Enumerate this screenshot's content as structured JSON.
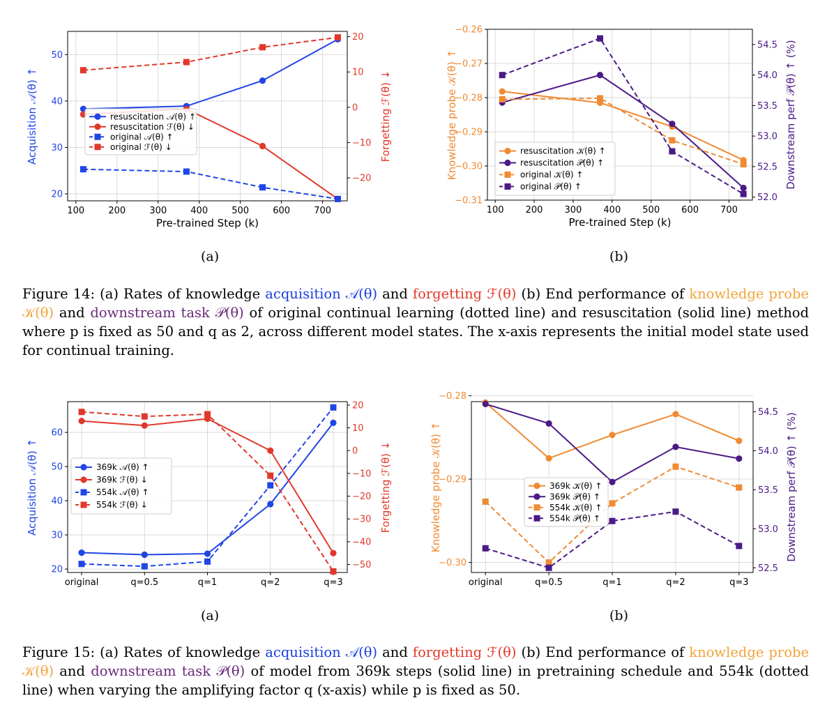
{
  "colors": {
    "blue": "#1f45e6",
    "red": "#e0392b",
    "orange": "#f08a33",
    "purple": "#4b1a86",
    "grid": "#d9d9d9"
  },
  "chart_data": [
    {
      "id": "fig14a",
      "type": "line",
      "xlabel": "Pre-trained Step (k)",
      "ylabel": "Acquisition 𝒜(θ) ↑",
      "y2label": "Forgetting ℱ(θ) ↓",
      "x": [
        118,
        369,
        554,
        737
      ],
      "xlim": [
        80,
        760
      ],
      "ylim": [
        18.5,
        55
      ],
      "y2lim": [
        -26.5,
        21.5
      ],
      "xticks": [
        100,
        200,
        300,
        400,
        500,
        600,
        700
      ],
      "yticks": [
        20,
        30,
        40,
        50
      ],
      "y2ticks": [
        -20,
        -10,
        0,
        10,
        20
      ],
      "xtick_labels": [
        "100",
        "200",
        "300",
        "400",
        "500",
        "600",
        "700"
      ],
      "ytick_labels": [
        "20",
        "30",
        "40",
        "50"
      ],
      "y2tick_labels": [
        "−20",
        "−10",
        "0",
        "10",
        "20"
      ],
      "legend": "center-left",
      "series": [
        {
          "name": "resuscitation 𝒜(θ) ↑",
          "axis": "left",
          "color": "blue",
          "marker": "circle",
          "dash": false,
          "values": [
            38.3,
            38.9,
            44.4,
            53.3
          ]
        },
        {
          "name": "resuscitation ℱ(θ) ↓",
          "axis": "right",
          "color": "red",
          "marker": "circle",
          "dash": false,
          "values": [
            -2,
            -0.5,
            -11,
            -26
          ]
        },
        {
          "name": "original 𝒜(θ) ↑",
          "axis": "left",
          "color": "blue",
          "marker": "square",
          "dash": true,
          "values": [
            25.3,
            24.8,
            21.4,
            18.9
          ]
        },
        {
          "name": "original ℱ(θ) ↓",
          "axis": "right",
          "color": "red",
          "marker": "square",
          "dash": true,
          "values": [
            10.5,
            12.8,
            17,
            19.8
          ]
        }
      ]
    },
    {
      "id": "fig14b",
      "type": "line",
      "xlabel": "Pre-trained Step (k)",
      "ylabel": "Knowledge probe 𝒦(θ) ↑",
      "y2label": "Downstream perf 𝒫(θ) ↑ (%)",
      "x": [
        118,
        369,
        554,
        737
      ],
      "xlim": [
        80,
        760
      ],
      "ylim": [
        -0.31,
        -0.26
      ],
      "y2lim": [
        51.95,
        54.75
      ],
      "xticks": [
        100,
        200,
        300,
        400,
        500,
        600,
        700
      ],
      "yticks": [
        -0.31,
        -0.3,
        -0.29,
        -0.28,
        -0.27,
        -0.26
      ],
      "y2ticks": [
        52.0,
        52.5,
        53.0,
        53.5,
        54.0,
        54.5
      ],
      "xtick_labels": [
        "100",
        "200",
        "300",
        "400",
        "500",
        "600",
        "700"
      ],
      "ytick_labels": [
        "−0.31",
        "−0.30",
        "−0.29",
        "−0.28",
        "−0.27",
        "−0.26"
      ],
      "y2tick_labels": [
        "52.0",
        "52.5",
        "53.0",
        "53.5",
        "54.0",
        "54.5"
      ],
      "legend": "lower-left",
      "series": [
        {
          "name": "resuscitation 𝒦(θ) ↑",
          "axis": "left",
          "color": "orange",
          "marker": "circle",
          "dash": false,
          "values": [
            -0.2782,
            -0.2815,
            -0.2885,
            -0.2983
          ]
        },
        {
          "name": "resuscitation 𝒫(θ) ↑",
          "axis": "right",
          "color": "purple",
          "marker": "circle",
          "dash": false,
          "values": [
            53.55,
            54.0,
            53.2,
            52.15
          ]
        },
        {
          "name": "original 𝒦(θ) ↑",
          "axis": "left",
          "color": "orange",
          "marker": "square",
          "dash": true,
          "values": [
            -0.2805,
            -0.2802,
            -0.2925,
            -0.2995
          ]
        },
        {
          "name": "original 𝒫(θ) ↑",
          "axis": "right",
          "color": "purple",
          "marker": "square",
          "dash": true,
          "values": [
            54.0,
            54.6,
            52.75,
            52.05
          ]
        }
      ]
    },
    {
      "id": "fig15a",
      "type": "line",
      "ylabel": "Acquisition 𝒜(θ) ↑",
      "y2label": "Forgetting ℱ(θ) ↓",
      "categories": [
        "original",
        "q=0.5",
        "q=1",
        "q=2",
        "q=3"
      ],
      "ylim": [
        19,
        69
      ],
      "y2lim": [
        -53.5,
        21.5
      ],
      "yticks": [
        20,
        30,
        40,
        50,
        60
      ],
      "y2ticks": [
        -50,
        -40,
        -30,
        -20,
        -10,
        0,
        10,
        20
      ],
      "ytick_labels": [
        "20",
        "30",
        "40",
        "50",
        "60"
      ],
      "y2tick_labels": [
        "−50",
        "−40",
        "−30",
        "−20",
        "−10",
        "0",
        "10",
        "20"
      ],
      "legend": "center-left",
      "series": [
        {
          "name": "369k 𝒜(θ) ↑",
          "axis": "left",
          "color": "blue",
          "marker": "circle",
          "dash": false,
          "values": [
            24.8,
            24.2,
            24.5,
            39.0,
            62.8
          ]
        },
        {
          "name": "369k ℱ(θ) ↓",
          "axis": "right",
          "color": "red",
          "marker": "circle",
          "dash": false,
          "values": [
            13,
            11,
            14,
            0,
            -45
          ]
        },
        {
          "name": "554k 𝒜(θ) ↑",
          "axis": "left",
          "color": "blue",
          "marker": "square",
          "dash": true,
          "values": [
            21.5,
            20.8,
            22.2,
            44.5,
            67.3
          ]
        },
        {
          "name": "554k ℱ(θ) ↓",
          "axis": "right",
          "color": "red",
          "marker": "square",
          "dash": true,
          "values": [
            17,
            15,
            16,
            -11,
            -53
          ]
        }
      ]
    },
    {
      "id": "fig15b",
      "type": "line",
      "ylabel": "Knowledge probe 𝒦(θ) ↑",
      "y2label": "Downstream perf 𝒫(θ) ↑ (%)",
      "categories": [
        "original",
        "q=0.5",
        "q=1",
        "q=2",
        "q=3"
      ],
      "ylim": [
        -0.3012,
        -0.2807
      ],
      "y2lim": [
        52.44,
        54.63
      ],
      "yticks": [
        -0.3,
        -0.29,
        -0.28
      ],
      "y2ticks": [
        52.5,
        53.0,
        53.5,
        54.0,
        54.5
      ],
      "ytick_labels": [
        "−0.30",
        "−0.29",
        "−0.28"
      ],
      "y2tick_labels": [
        "52.5",
        "53.0",
        "53.5",
        "54.0",
        "54.5"
      ],
      "legend": "center-left",
      "series": [
        {
          "name": "369k 𝒦(θ) ↑",
          "axis": "left",
          "color": "orange",
          "marker": "circle",
          "dash": false,
          "values": [
            -0.2808,
            -0.2875,
            -0.2847,
            -0.2822,
            -0.2854
          ]
        },
        {
          "name": "369k 𝒫(θ) ↑",
          "axis": "right",
          "color": "purple",
          "marker": "circle",
          "dash": false,
          "values": [
            54.6,
            54.35,
            53.6,
            54.05,
            53.9
          ]
        },
        {
          "name": "554k 𝒦(θ) ↑",
          "axis": "left",
          "color": "orange",
          "marker": "square",
          "dash": true,
          "values": [
            -0.2927,
            -0.3,
            -0.2929,
            -0.2885,
            -0.291
          ]
        },
        {
          "name": "554k 𝒫(θ) ↑",
          "axis": "right",
          "color": "purple",
          "marker": "square",
          "dash": true,
          "values": [
            52.75,
            52.5,
            53.1,
            53.22,
            52.78
          ]
        }
      ]
    }
  ],
  "panels": {
    "a": "(a)",
    "b": "(b)"
  },
  "caption14": {
    "p1": "Figure 14: (a) Rates of knowledge ",
    "acq": "acquisition 𝒜(θ)",
    "p2": " and ",
    "forg": "forgetting ℱ(θ)",
    "p3": " (b) End performance of ",
    "kp": "knowledge probe 𝒦(θ)",
    "p4": " and ",
    "dt": "downstream task 𝒫(θ)",
    "p5": " of original continual learning (dotted line) and resuscitation (solid line) method where p is fixed as 50 and q as 2, across different model states. The x-axis represents the initial model state used for continual training."
  },
  "caption15": {
    "p1": "Figure 15: (a) Rates of knowledge ",
    "acq": "acquisition 𝒜(θ)",
    "p2": " and ",
    "forg": "forgetting ℱ(θ)",
    "p3": " (b) End performance of ",
    "kp": "knowledge probe 𝒦(θ)",
    "p4": " and ",
    "dt": "downstream task 𝒫(θ)",
    "p5": " of model from 369k steps (solid line) in pretraining schedule and 554k (dotted line) when varying the amplifying factor q (x-axis) while p is fixed as 50."
  }
}
